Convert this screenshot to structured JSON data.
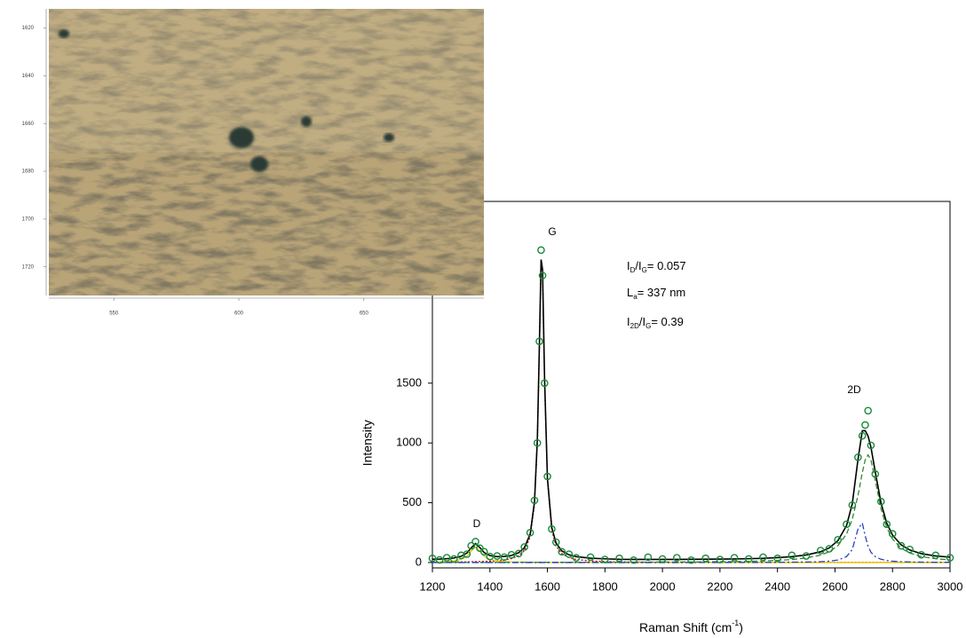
{
  "chart_data": [
    {
      "type": "image",
      "xlim": [
        524,
        698
      ],
      "xticks": [
        550,
        600,
        650
      ],
      "ylim": [
        1612,
        1732
      ],
      "yticks": [
        1620,
        1640,
        1660,
        1680,
        1700,
        1720
      ],
      "invert_y": true
    },
    {
      "type": "line",
      "x_label": [
        "Raman Shift (cm",
        "-1",
        ")"
      ],
      "y_label": "Intensity",
      "peak_labels": [
        "D",
        "G",
        "2D"
      ],
      "annotations": [
        [
          "I",
          "D",
          "/I",
          "G",
          "= 0.057"
        ],
        [
          "L",
          "a",
          "= 337 nm"
        ],
        [
          "I",
          "2D",
          "/I",
          "G",
          "= 0.39"
        ]
      ],
      "xlim": [
        1200,
        3000
      ],
      "xticks": [
        1200,
        1400,
        1600,
        1800,
        2000,
        2200,
        2400,
        2600,
        2800,
        3000
      ],
      "ylim": [
        -45,
        3020
      ],
      "yticks": [
        0,
        500,
        1000,
        1500
      ],
      "x": [
        1200,
        1225,
        1250,
        1275,
        1300,
        1320,
        1335,
        1350,
        1365,
        1380,
        1400,
        1425,
        1450,
        1475,
        1500,
        1520,
        1540,
        1555,
        1565,
        1572,
        1578,
        1583,
        1590,
        1600,
        1615,
        1630,
        1650,
        1675,
        1700,
        1750,
        1800,
        1850,
        1900,
        1950,
        2000,
        2050,
        2100,
        2150,
        2200,
        2250,
        2300,
        2350,
        2400,
        2450,
        2500,
        2550,
        2580,
        2610,
        2640,
        2660,
        2680,
        2695,
        2705,
        2715,
        2725,
        2740,
        2760,
        2780,
        2800,
        2830,
        2860,
        2900,
        2950,
        3000
      ],
      "series": [
        {
          "color": "#1a8a3a",
          "marker": "circle",
          "values": [
            35,
            22,
            40,
            30,
            60,
            70,
            140,
            175,
            120,
            90,
            50,
            55,
            45,
            65,
            75,
            130,
            250,
            520,
            1000,
            1850,
            2613,
            2400,
            1500,
            720,
            280,
            170,
            90,
            70,
            40,
            45,
            25,
            35,
            20,
            45,
            30,
            40,
            20,
            35,
            25,
            40,
            30,
            45,
            35,
            60,
            55,
            100,
            115,
            190,
            320,
            480,
            880,
            1060,
            1150,
            1270,
            980,
            740,
            510,
            320,
            240,
            140,
            110,
            65,
            60,
            40
          ]
        },
        {
          "color": "#c00000",
          "line_style": "dotted",
          "values": [
            3,
            3,
            3,
            4,
            5,
            5,
            6,
            7,
            8,
            9,
            11,
            15,
            22,
            33,
            57,
            99,
            213,
            483,
            1008,
            1787,
            2510,
            2428,
            1523,
            683,
            272,
            140,
            74,
            41,
            26,
            13,
            8,
            5,
            4,
            3,
            2,
            2,
            2,
            1,
            1,
            1,
            1,
            1,
            1,
            1,
            1,
            1,
            1,
            1,
            1,
            1,
            1,
            1,
            1,
            1,
            1,
            1,
            1,
            1,
            1,
            1,
            1,
            1,
            1,
            1
          ]
        },
        {
          "color": "#e6c800",
          "line_style": "solid",
          "values": [
            4,
            5,
            8,
            13,
            26,
            53,
            96,
            130,
            96,
            53,
            26,
            13,
            8,
            5,
            4,
            3,
            2,
            2,
            2,
            2,
            2,
            2,
            2,
            1,
            1,
            1,
            1,
            1,
            1,
            1,
            1,
            0,
            0,
            0,
            0,
            0,
            0,
            0,
            0,
            0,
            0,
            0,
            0,
            0,
            0,
            0,
            0,
            0,
            0,
            0,
            0,
            0,
            0,
            0,
            0,
            0,
            0,
            0,
            0,
            0,
            0,
            0,
            0,
            0
          ]
        },
        {
          "color": "#2e8b2e",
          "line_style": "dashed",
          "values": [
            1,
            1,
            1,
            1,
            1,
            1,
            1,
            1,
            1,
            1,
            1,
            1,
            1,
            1,
            1,
            2,
            2,
            2,
            2,
            2,
            2,
            2,
            2,
            2,
            2,
            2,
            2,
            2,
            2,
            2,
            2,
            2,
            2,
            3,
            4,
            4,
            5,
            6,
            7,
            8,
            10,
            13,
            18,
            25,
            38,
            62,
            90,
            140,
            238,
            361,
            561,
            751,
            858,
            900,
            858,
            688,
            450,
            291,
            197,
            120,
            79,
            50,
            32,
            22
          ]
        },
        {
          "color": "#2b3fbf",
          "line_style": "dashdot",
          "values": [
            0,
            0,
            0,
            0,
            0,
            0,
            0,
            0,
            0,
            0,
            0,
            0,
            0,
            0,
            0,
            0,
            0,
            0,
            0,
            0,
            0,
            0,
            0,
            0,
            0,
            0,
            0,
            0,
            0,
            0,
            0,
            0,
            0,
            0,
            0,
            0,
            0,
            1,
            1,
            1,
            1,
            1,
            2,
            3,
            4,
            7,
            11,
            21,
            49,
            108,
            280,
            330,
            224,
            137,
            86,
            49,
            27,
            17,
            11,
            7,
            5,
            3,
            2,
            2
          ]
        },
        {
          "color": "#000000",
          "line_style": "solid",
          "values": [
            28,
            29,
            32,
            38,
            52,
            79,
            123,
            158,
            125,
            83,
            58,
            49,
            51,
            59,
            82,
            124,
            237,
            507,
            1032,
            1811,
            2534,
            2452,
            1547,
            706,
            295,
            163,
            97,
            64,
            49,
            36,
            31,
            27,
            26,
            26,
            26,
            26,
            27,
            28,
            29,
            30,
            32,
            35,
            41,
            49,
            63,
            90,
            122,
            182,
            308,
            490,
            862,
            1102,
            1103,
            1058,
            965,
            758,
            498,
            329,
            229,
            148,
            105,
            74,
            55,
            45
          ]
        }
      ]
    }
  ]
}
